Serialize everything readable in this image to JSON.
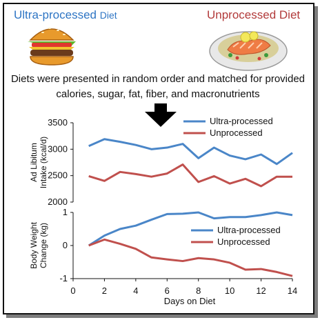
{
  "header": {
    "ultra_title_main": "Ultra-processed ",
    "ultra_title_suffix": "Diet",
    "unprocessed_title": "Unprocessed Diet",
    "burger_icon": "hamburger-icon",
    "salmon_icon": "salmon-plate-icon"
  },
  "caption": "Diets were presented in random order and matched for provided calories, sugar, fat, fiber, and macronutrients",
  "arrow_icon": "down-arrow-icon",
  "colors": {
    "ultra": "#4a86c8",
    "unprocessed": "#c0504d",
    "ultra_title": "#2e75c4",
    "unprocessed_title": "#b23a3a"
  },
  "chart_data": [
    {
      "type": "line",
      "ylabel": "Ad Libitum\nIntake (kcal/d)",
      "ylim": [
        2000,
        3500
      ],
      "yticks": [
        2000,
        2500,
        3000,
        3500
      ],
      "legend_position": "top-right",
      "x": [
        1,
        2,
        3,
        4,
        5,
        6,
        7,
        8,
        9,
        10,
        11,
        12,
        13,
        14
      ],
      "series": [
        {
          "name": "Ultra-processed",
          "values": [
            3060,
            3190,
            3140,
            3080,
            3000,
            3030,
            3100,
            2830,
            3030,
            2880,
            2810,
            2900,
            2720,
            2930
          ]
        },
        {
          "name": "Unprocessed",
          "values": [
            2490,
            2400,
            2570,
            2530,
            2480,
            2540,
            2710,
            2380,
            2490,
            2350,
            2440,
            2300,
            2480,
            2480
          ]
        }
      ]
    },
    {
      "type": "line",
      "ylabel": "Body Weight\nChange (kg)",
      "xlabel": "Days on Diet",
      "xlim": [
        0,
        14
      ],
      "xticks": [
        0,
        2,
        4,
        6,
        8,
        10,
        12,
        14
      ],
      "ylim": [
        -1,
        1
      ],
      "yticks": [
        -1,
        0,
        1
      ],
      "legend_position": "right",
      "x": [
        1,
        2,
        3,
        4,
        5,
        6,
        7,
        8,
        9,
        10,
        11,
        12,
        13,
        14
      ],
      "series": [
        {
          "name": "Ultra-processed",
          "values": [
            0.0,
            0.3,
            0.5,
            0.6,
            0.78,
            0.95,
            0.96,
            1.0,
            0.82,
            0.86,
            0.86,
            0.92,
            1.0,
            0.92
          ]
        },
        {
          "name": "Unprocessed",
          "values": [
            0.0,
            0.18,
            0.05,
            -0.1,
            -0.36,
            -0.42,
            -0.47,
            -0.38,
            -0.42,
            -0.52,
            -0.73,
            -0.71,
            -0.8,
            -0.92
          ]
        }
      ]
    }
  ]
}
